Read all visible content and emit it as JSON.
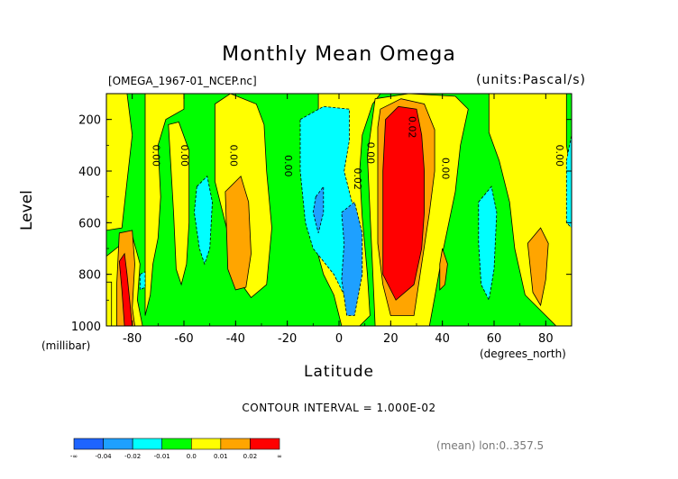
{
  "colors": {
    "below_-0.04": "#1e64ff",
    "-0.04_-0.02": "#1ea0ff",
    "-0.02_-0.01": "#00ffff",
    "-0.01_0.0": "#00ff00",
    "0.0_0.01": "#ffff00",
    "0.01_0.02": "#ffa500",
    "above_0.02": "#ff0000"
  },
  "chart_data": {
    "type": "heatmap",
    "title": "Monthly Mean Omega",
    "file_label": "[OMEGA_1967-01_NCEP.nc]",
    "units_label": "(units:Pascal/s)",
    "xlabel": "Latitude",
    "x_units": "(degrees_north)",
    "ylabel": "Level",
    "y_units": "(millibar)",
    "xlim": [
      -90,
      90
    ],
    "ylim": [
      1000,
      100
    ],
    "x_ticks": [
      -80,
      -60,
      -40,
      -20,
      0,
      20,
      40,
      60,
      80
    ],
    "y_ticks": [
      200,
      400,
      600,
      800,
      1000
    ],
    "contour_interval_text": "CONTOUR INTERVAL = 1.000E-02",
    "footnote": "(mean) lon:0..357.5",
    "colorbar": {
      "boundary_labels": [
        "-∞",
        "-0.04",
        "-0.02",
        "-0.01",
        "0.0",
        "0.01",
        "0.02",
        "∞"
      ],
      "bins": [
        "below_-0.04",
        "-0.04_-0.02",
        "-0.02_-0.01",
        "-0.01_0.0",
        "0.0_0.01",
        "0.01_0.02",
        "above_0.02"
      ]
    },
    "contour_labels": [
      {
        "text": "0.00",
        "lat": -72,
        "level": 340
      },
      {
        "text": "0.00",
        "lat": -61,
        "level": 340
      },
      {
        "text": "0.00",
        "lat": -42,
        "level": 340
      },
      {
        "text": "0.00",
        "lat": -21,
        "level": 380
      },
      {
        "text": "0.00",
        "lat": 11,
        "level": 330
      },
      {
        "text": "0.02",
        "lat": 6,
        "level": 430
      },
      {
        "text": "0.02",
        "lat": 27,
        "level": 230
      },
      {
        "text": "0.00",
        "lat": 40,
        "level": 390
      },
      {
        "text": "0.00",
        "lat": 84,
        "level": 340
      }
    ],
    "regions": [
      {
        "bin": "-0.01_0.0",
        "pts": [
          [
            -90,
            100
          ],
          [
            90,
            100
          ],
          [
            90,
            1000
          ],
          [
            -90,
            1000
          ]
        ]
      },
      {
        "bin": "0.0_0.01",
        "pts": [
          [
            -90,
            100
          ],
          [
            -82,
            100
          ],
          [
            -80,
            260
          ],
          [
            -82,
            440
          ],
          [
            -84,
            620
          ],
          [
            -90,
            630
          ]
        ]
      },
      {
        "bin": "0.0_0.01",
        "pts": [
          [
            -90,
            730
          ],
          [
            -80,
            650
          ],
          [
            -77,
            760
          ],
          [
            -78,
            900
          ],
          [
            -76,
            1000
          ],
          [
            -90,
            1000
          ]
        ]
      },
      {
        "bin": "0.0_0.01",
        "pts": [
          [
            -75,
            100
          ],
          [
            -60,
            100
          ],
          [
            -60,
            160
          ],
          [
            -67,
            200
          ],
          [
            -70,
            300
          ],
          [
            -69,
            500
          ],
          [
            -70,
            660
          ],
          [
            -72,
            760
          ],
          [
            -73,
            880
          ],
          [
            -75,
            960
          ]
        ]
      },
      {
        "bin": "0.0_0.01",
        "pts": [
          [
            -66,
            220
          ],
          [
            -62,
            210
          ],
          [
            -58,
            320
          ],
          [
            -58,
            600
          ],
          [
            -59,
            760
          ],
          [
            -61,
            840
          ],
          [
            -63,
            780
          ],
          [
            -64,
            560
          ]
        ]
      },
      {
        "bin": "0.0_0.01",
        "pts": [
          [
            -48,
            140
          ],
          [
            -42,
            100
          ],
          [
            -32,
            140
          ],
          [
            -29,
            220
          ],
          [
            -28,
            400
          ],
          [
            -26,
            620
          ],
          [
            -28,
            840
          ],
          [
            -34,
            890
          ],
          [
            -39,
            820
          ],
          [
            -43,
            640
          ],
          [
            -48,
            440
          ]
        ]
      },
      {
        "bin": "0.0_0.01",
        "pts": [
          [
            -8,
            100
          ],
          [
            16,
            100
          ],
          [
            13,
            140
          ],
          [
            9,
            260
          ],
          [
            8,
            400
          ],
          [
            9,
            580
          ],
          [
            11,
            800
          ],
          [
            12,
            960
          ],
          [
            8,
            1000
          ],
          [
            1,
            1000
          ],
          [
            -2,
            880
          ],
          [
            -6,
            800
          ],
          [
            -9,
            690
          ],
          [
            -8,
            500
          ]
        ]
      },
      {
        "bin": "0.0_0.01",
        "pts": [
          [
            14,
            120
          ],
          [
            27,
            100
          ],
          [
            45,
            110
          ],
          [
            50,
            160
          ],
          [
            47,
            300
          ],
          [
            45,
            480
          ],
          [
            40,
            720
          ],
          [
            37,
            890
          ],
          [
            35,
            1000
          ],
          [
            14,
            1000
          ],
          [
            13,
            780
          ],
          [
            12,
            560
          ],
          [
            11,
            340
          ]
        ]
      },
      {
        "bin": "0.0_0.01",
        "pts": [
          [
            58,
            100
          ],
          [
            88,
            100
          ],
          [
            88,
            300
          ],
          [
            90,
            420
          ],
          [
            90,
            1000
          ],
          [
            84,
            1000
          ],
          [
            80,
            960
          ],
          [
            72,
            880
          ],
          [
            68,
            700
          ],
          [
            66,
            520
          ],
          [
            62,
            360
          ],
          [
            58,
            250
          ]
        ]
      },
      {
        "bin": "0.0_0.01",
        "pts": [
          [
            -90,
            1000
          ],
          [
            -90,
            830
          ],
          [
            -88,
            830
          ],
          [
            -88,
            1000
          ]
        ]
      },
      {
        "bin": "0.01_0.02",
        "pts": [
          [
            -44,
            480
          ],
          [
            -38,
            420
          ],
          [
            -35,
            520
          ],
          [
            -34,
            720
          ],
          [
            -36,
            850
          ],
          [
            -40,
            860
          ],
          [
            -43,
            780
          ]
        ]
      },
      {
        "bin": "0.01_0.02",
        "pts": [
          [
            16,
            160
          ],
          [
            24,
            120
          ],
          [
            33,
            140
          ],
          [
            37,
            240
          ],
          [
            37,
            400
          ],
          [
            35,
            560
          ],
          [
            32,
            760
          ],
          [
            29,
            960
          ],
          [
            20,
            960
          ],
          [
            17,
            840
          ],
          [
            15,
            680
          ],
          [
            15,
            420
          ],
          [
            15,
            230
          ]
        ]
      },
      {
        "bin": "0.01_0.02",
        "pts": [
          [
            73,
            680
          ],
          [
            78,
            620
          ],
          [
            81,
            680
          ],
          [
            80,
            820
          ],
          [
            78,
            920
          ],
          [
            75,
            870
          ]
        ]
      },
      {
        "bin": "0.01_0.02",
        "pts": [
          [
            -85,
            640
          ],
          [
            -80,
            630
          ],
          [
            -79,
            760
          ],
          [
            -80,
            930
          ],
          [
            -79,
            1000
          ],
          [
            -86,
            1000
          ],
          [
            -86,
            840
          ]
        ]
      },
      {
        "bin": "0.01_0.02",
        "pts": [
          [
            40,
            700
          ],
          [
            42,
            760
          ],
          [
            41,
            840
          ],
          [
            39,
            860
          ],
          [
            39,
            760
          ]
        ]
      },
      {
        "bin": "-0.02_-0.01",
        "pts": [
          [
            -55,
            460
          ],
          [
            -51,
            420
          ],
          [
            -49,
            520
          ],
          [
            -50,
            700
          ],
          [
            -52,
            760
          ],
          [
            -54,
            700
          ],
          [
            -56,
            560
          ]
        ]
      },
      {
        "bin": "-0.02_-0.01",
        "pts": [
          [
            -15,
            200
          ],
          [
            -6,
            150
          ],
          [
            4,
            160
          ],
          [
            4,
            280
          ],
          [
            2,
            400
          ],
          [
            5,
            520
          ],
          [
            8,
            600
          ],
          [
            9,
            720
          ],
          [
            6,
            860
          ],
          [
            2,
            880
          ],
          [
            -2,
            800
          ],
          [
            -10,
            700
          ],
          [
            -13,
            600
          ],
          [
            -15,
            400
          ]
        ]
      },
      {
        "bin": "-0.02_-0.01",
        "pts": [
          [
            54,
            520
          ],
          [
            59,
            460
          ],
          [
            61,
            560
          ],
          [
            60,
            780
          ],
          [
            58,
            900
          ],
          [
            55,
            840
          ],
          [
            54,
            680
          ]
        ]
      },
      {
        "bin": "-0.02_-0.01",
        "pts": [
          [
            88,
            360
          ],
          [
            90,
            260
          ],
          [
            90,
            620
          ],
          [
            88,
            600
          ]
        ]
      },
      {
        "bin": "-0.02_-0.01",
        "pts": [
          [
            -77,
            800
          ],
          [
            -75,
            790
          ],
          [
            -75,
            850
          ],
          [
            -77,
            860
          ]
        ]
      },
      {
        "bin": "-0.04_-0.02",
        "pts": [
          [
            -9,
            500
          ],
          [
            -6,
            460
          ],
          [
            -6,
            560
          ],
          [
            -8,
            640
          ],
          [
            -10,
            560
          ]
        ]
      },
      {
        "bin": "-0.04_-0.02",
        "pts": [
          [
            1,
            560
          ],
          [
            6,
            520
          ],
          [
            9,
            640
          ],
          [
            9,
            800
          ],
          [
            6,
            960
          ],
          [
            3,
            960
          ],
          [
            1,
            820
          ],
          [
            2,
            680
          ]
        ]
      },
      {
        "bin": "above_0.02",
        "pts": [
          [
            18,
            200
          ],
          [
            23,
            150
          ],
          [
            30,
            160
          ],
          [
            32,
            260
          ],
          [
            33,
            400
          ],
          [
            33,
            560
          ],
          [
            32,
            700
          ],
          [
            29,
            840
          ],
          [
            22,
            900
          ],
          [
            17,
            800
          ],
          [
            17,
            600
          ],
          [
            17,
            400
          ]
        ]
      },
      {
        "bin": "above_0.02",
        "pts": [
          [
            -85,
            750
          ],
          [
            -83,
            720
          ],
          [
            -82,
            800
          ],
          [
            -81,
            900
          ],
          [
            -80,
            1000
          ],
          [
            -83,
            1000
          ],
          [
            -84,
            860
          ]
        ]
      }
    ]
  }
}
